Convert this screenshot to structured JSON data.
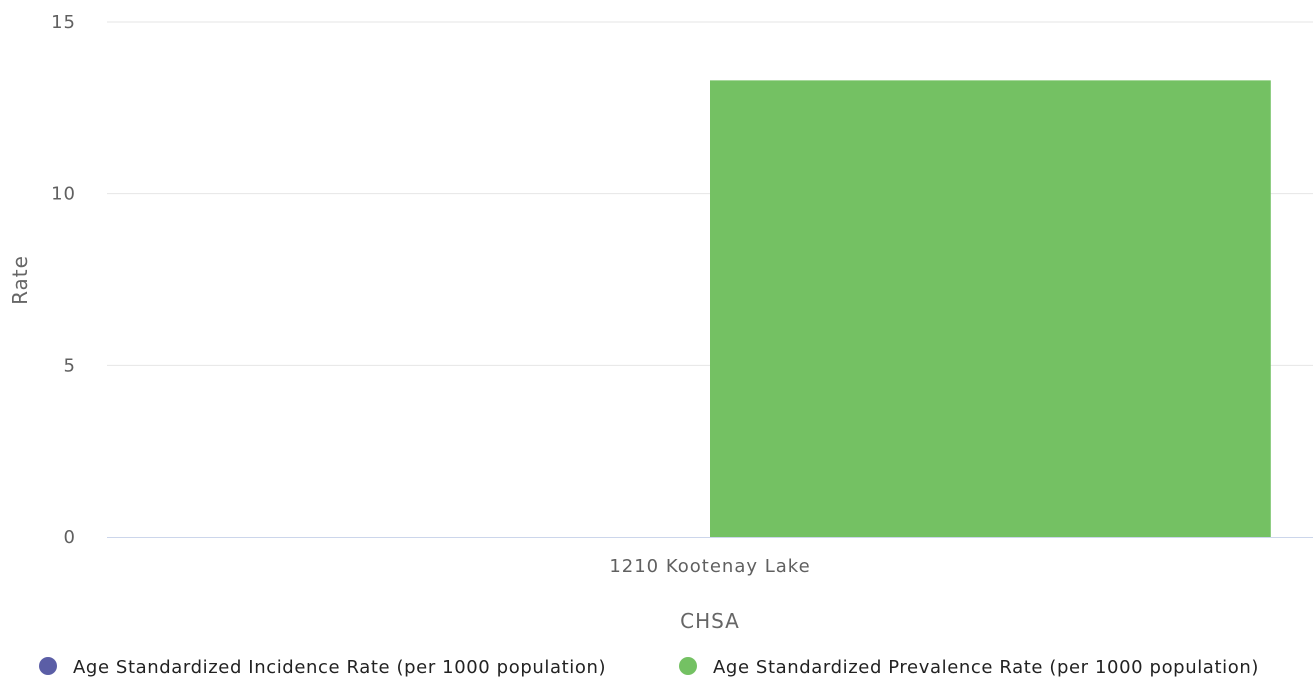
{
  "chart_data": {
    "type": "bar",
    "categories": [
      "1210 Kootenay Lake"
    ],
    "series": [
      {
        "name": "Age Standardized Incidence Rate (per 1000 population)",
        "values": [
          null
        ],
        "color": "#5b5ea6"
      },
      {
        "name": "Age Standardized Prevalence Rate (per 1000 population)",
        "values": [
          13.3
        ],
        "color": "#74c163"
      }
    ],
    "yticks": [
      0,
      5,
      10,
      15
    ],
    "ylim": [
      0,
      15
    ],
    "xlabel": "CHSA",
    "ylabel": "Rate",
    "grid": true,
    "legend_position": "bottom"
  }
}
